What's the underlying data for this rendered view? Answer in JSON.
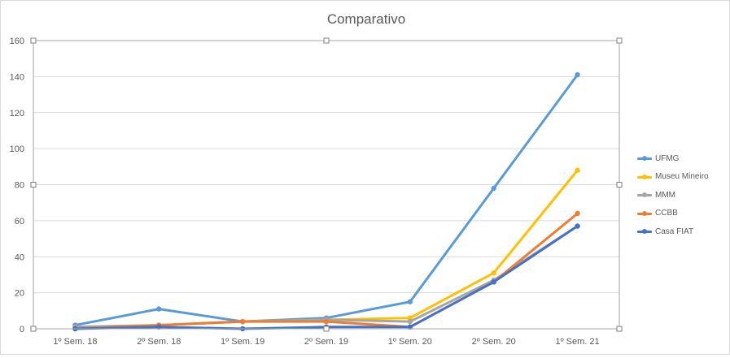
{
  "chart_data": {
    "type": "line",
    "title": "Comparativo",
    "xlabel": "",
    "ylabel": "",
    "categories": [
      "1º Sem. 18",
      "2º Sem. 18",
      "1º Sem. 19",
      "2º Sem. 19",
      "1º Sem. 20",
      "2º Sem. 20",
      "1º Sem. 21"
    ],
    "ylim": [
      0,
      160
    ],
    "yticks": [
      "0",
      "20",
      "40",
      "60",
      "80",
      "100",
      "120",
      "140",
      "160"
    ],
    "grid": true,
    "legend_position": "right",
    "series": [
      {
        "name": "UFMG",
        "color": "#5b9bd5",
        "values": [
          2,
          11,
          4,
          6,
          15,
          78,
          141
        ]
      },
      {
        "name": "Museu Mineiro",
        "color": "#ffc000",
        "values": [
          1,
          2,
          4,
          5,
          6,
          31,
          88
        ]
      },
      {
        "name": "MMM",
        "color": "#a5a5a5",
        "values": [
          1,
          2,
          4,
          5,
          4,
          27,
          57
        ]
      },
      {
        "name": "CCBB",
        "color": "#ed7d31",
        "values": [
          0,
          2,
          4,
          4,
          1,
          26,
          64
        ]
      },
      {
        "name": "Casa FIAT",
        "color": "#4472c4",
        "values": [
          0,
          1,
          0,
          1,
          1,
          26,
          57
        ]
      }
    ]
  }
}
